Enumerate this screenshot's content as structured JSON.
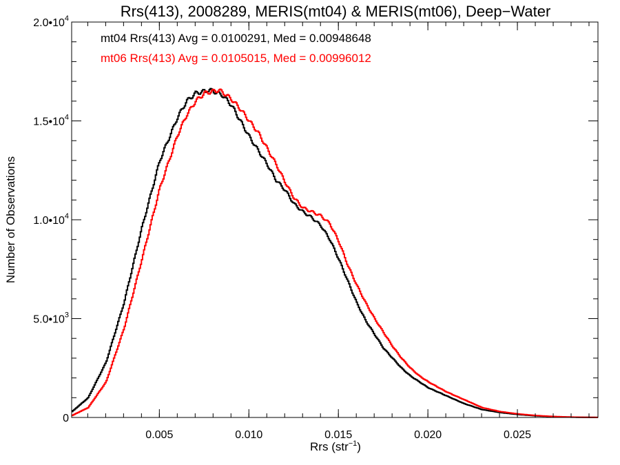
{
  "chart_data": {
    "type": "line",
    "style": "step-histogram",
    "title": "Rrs(413), 2008289, MERIS(mt04) & MERIS(mt06), Deep−Water",
    "xlabel": {
      "main": "Rrs (str",
      "sup": "−1",
      "end": ")"
    },
    "ylabel": "Number of Observations",
    "xlim": [
      0.0001,
      0.0295
    ],
    "ylim": [
      0,
      20000
    ],
    "grid": false,
    "legend_placement": "top-left",
    "x_ticks": [
      {
        "value": 0.005,
        "label": "0.005"
      },
      {
        "value": 0.01,
        "label": "0.010"
      },
      {
        "value": 0.015,
        "label": "0.015"
      },
      {
        "value": 0.02,
        "label": "0.020"
      },
      {
        "value": 0.025,
        "label": "0.025"
      }
    ],
    "y_ticks": [
      {
        "value": 0,
        "mant": "0",
        "exp": ""
      },
      {
        "value": 5000,
        "mant": "5.0•10",
        "exp": "3"
      },
      {
        "value": 10000,
        "mant": "1.0•10",
        "exp": "4"
      },
      {
        "value": 15000,
        "mant": "1.5•10",
        "exp": "4"
      },
      {
        "value": 20000,
        "mant": "2.0•10",
        "exp": "4"
      }
    ],
    "series": [
      {
        "color": "#000000",
        "legend": "mt04 Rrs(413) Avg = 0.0100291, Med = 0.00948648",
        "x": [
          0.0001,
          0.001,
          0.002,
          0.003,
          0.004,
          0.005,
          0.006,
          0.0065,
          0.007,
          0.0075,
          0.0078,
          0.008,
          0.0085,
          0.009,
          0.0095,
          0.01,
          0.0105,
          0.011,
          0.0115,
          0.012,
          0.0125,
          0.013,
          0.0135,
          0.014,
          0.0145,
          0.015,
          0.0155,
          0.016,
          0.0165,
          0.017,
          0.0175,
          0.018,
          0.0185,
          0.019,
          0.0195,
          0.02,
          0.021,
          0.022,
          0.023,
          0.024,
          0.025,
          0.026,
          0.027,
          0.028,
          0.029,
          0.0295
        ],
        "y": [
          300,
          1000,
          2800,
          5800,
          9600,
          13000,
          15200,
          16000,
          16400,
          16500,
          16550,
          16500,
          16300,
          15800,
          15000,
          14200,
          13500,
          12800,
          12000,
          11500,
          10800,
          10400,
          10100,
          9700,
          9000,
          8000,
          6900,
          5800,
          4900,
          4200,
          3500,
          3000,
          2500,
          2100,
          1800,
          1500,
          1100,
          700,
          400,
          250,
          150,
          80,
          40,
          15,
          5,
          2
        ]
      },
      {
        "color": "#ff0000",
        "legend": "mt06 Rrs(413) Avg = 0.0105015, Med = 0.00996012",
        "x": [
          0.0001,
          0.001,
          0.002,
          0.003,
          0.004,
          0.005,
          0.006,
          0.0065,
          0.007,
          0.0075,
          0.008,
          0.0083,
          0.0085,
          0.009,
          0.0095,
          0.01,
          0.0105,
          0.011,
          0.0115,
          0.012,
          0.0125,
          0.013,
          0.0135,
          0.014,
          0.0145,
          0.015,
          0.0155,
          0.016,
          0.0165,
          0.017,
          0.0175,
          0.018,
          0.0185,
          0.019,
          0.0195,
          0.02,
          0.021,
          0.022,
          0.023,
          0.024,
          0.025,
          0.026,
          0.027,
          0.028,
          0.029,
          0.0295
        ],
        "y": [
          100,
          500,
          1800,
          4500,
          8000,
          11600,
          14300,
          15300,
          16000,
          16400,
          16500,
          16550,
          16450,
          16100,
          15600,
          15000,
          14400,
          13600,
          12800,
          11900,
          11100,
          10600,
          10400,
          10200,
          9800,
          8900,
          7700,
          6700,
          5800,
          5000,
          4300,
          3600,
          3000,
          2500,
          2100,
          1800,
          1300,
          900,
          500,
          300,
          180,
          100,
          50,
          20,
          8,
          3
        ]
      }
    ]
  }
}
